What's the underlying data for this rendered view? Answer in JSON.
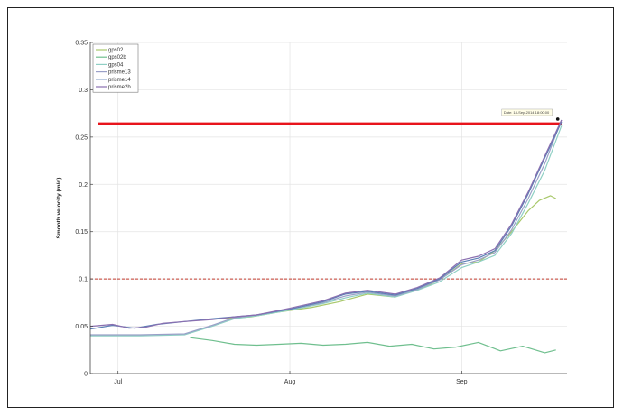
{
  "chart_data": {
    "type": "line",
    "title": "",
    "xlabel": "",
    "ylabel": "Smooth velocity (m/d)",
    "ylim": [
      0,
      0.35
    ],
    "yticks": [
      0,
      0.05,
      0.1,
      0.15,
      0.2,
      0.25,
      0.3,
      0.35
    ],
    "ytick_labels": [
      "0",
      "0.05",
      "0.1",
      "0.15",
      "0.2",
      "0.25",
      "0.3",
      "0.35"
    ],
    "xlim": [
      "2014-06-26",
      "2014-09-20"
    ],
    "xticks": [
      "2014-07-01",
      "2014-08-01",
      "2014-09-01"
    ],
    "xtick_labels": [
      "Jul",
      "Aug",
      "Sep"
    ],
    "grid": true,
    "legend_position": "top-left",
    "threshold_lines": [
      {
        "value": 0.264,
        "color": "#e8141c",
        "style": "solid"
      },
      {
        "value": 0.1,
        "color": "#c0392b",
        "style": "dashed"
      }
    ],
    "annotation": {
      "x": "2014-09-18",
      "y": 0.268,
      "text": "Date: 18-Sep-2014 18:00:00"
    },
    "series": [
      {
        "name": "gps02",
        "color": "#a8c86a",
        "x": [
          "2014-07-20",
          "2014-07-25",
          "2014-07-30",
          "2014-08-05",
          "2014-08-10",
          "2014-08-15",
          "2014-08-20",
          "2014-08-23",
          "2014-08-26",
          "2014-08-29",
          "2014-09-01",
          "2014-09-04",
          "2014-09-07",
          "2014-09-10",
          "2014-09-13",
          "2014-09-15",
          "2014-09-17",
          "2014-09-18"
        ],
        "y": [
          0.058,
          0.06,
          0.065,
          0.07,
          0.076,
          0.084,
          0.081,
          0.087,
          0.093,
          0.103,
          0.116,
          0.118,
          0.13,
          0.15,
          0.172,
          0.183,
          0.188,
          0.185
        ]
      },
      {
        "name": "gps02b",
        "color": "#6fbf8e",
        "x": [
          "2014-07-14",
          "2014-07-18",
          "2014-07-22",
          "2014-07-26",
          "2014-07-30",
          "2014-08-03",
          "2014-08-07",
          "2014-08-11",
          "2014-08-15",
          "2014-08-19",
          "2014-08-23",
          "2014-08-27",
          "2014-08-31",
          "2014-09-04",
          "2014-09-08",
          "2014-09-12",
          "2014-09-16",
          "2014-09-18"
        ],
        "y": [
          0.038,
          0.035,
          0.031,
          0.03,
          0.031,
          0.032,
          0.03,
          0.031,
          0.033,
          0.029,
          0.031,
          0.026,
          0.028,
          0.033,
          0.024,
          0.029,
          0.022,
          0.025
        ]
      },
      {
        "name": "gps04",
        "color": "#8fcfc4",
        "x": [
          "2014-06-26",
          "2014-07-05",
          "2014-07-13",
          "2014-07-18",
          "2014-07-22",
          "2014-07-26",
          "2014-08-01",
          "2014-08-07",
          "2014-08-11",
          "2014-08-15",
          "2014-08-20",
          "2014-08-24",
          "2014-08-28",
          "2014-09-01",
          "2014-09-04",
          "2014-09-07",
          "2014-09-10",
          "2014-09-13",
          "2014-09-16",
          "2014-09-19"
        ],
        "y": [
          0.04,
          0.04,
          0.041,
          0.05,
          0.058,
          0.061,
          0.067,
          0.074,
          0.08,
          0.085,
          0.081,
          0.088,
          0.097,
          0.112,
          0.118,
          0.125,
          0.148,
          0.18,
          0.215,
          0.262
        ]
      },
      {
        "name": "prisme13",
        "color": "#9aa0c8",
        "x": [
          "2014-06-26",
          "2014-07-05",
          "2014-07-13",
          "2014-07-18",
          "2014-07-22",
          "2014-07-26",
          "2014-08-01",
          "2014-08-07",
          "2014-08-11",
          "2014-08-15",
          "2014-08-20",
          "2014-08-24",
          "2014-08-28",
          "2014-09-01",
          "2014-09-04",
          "2014-09-07",
          "2014-09-10",
          "2014-09-13",
          "2014-09-16",
          "2014-09-19"
        ],
        "y": [
          0.041,
          0.041,
          0.042,
          0.051,
          0.059,
          0.062,
          0.068,
          0.075,
          0.082,
          0.086,
          0.082,
          0.089,
          0.099,
          0.115,
          0.12,
          0.128,
          0.152,
          0.185,
          0.222,
          0.268
        ]
      },
      {
        "name": "prisme14",
        "color": "#5b7fb5",
        "x": [
          "2014-06-26",
          "2014-06-30",
          "2014-07-04",
          "2014-07-08",
          "2014-07-13",
          "2014-07-18",
          "2014-07-22",
          "2014-07-26",
          "2014-08-01",
          "2014-08-07",
          "2014-08-11",
          "2014-08-15",
          "2014-08-20",
          "2014-08-24",
          "2014-08-28",
          "2014-09-01",
          "2014-09-04",
          "2014-09-07",
          "2014-09-10",
          "2014-09-13",
          "2014-09-16",
          "2014-09-19"
        ],
        "y": [
          0.047,
          0.051,
          0.048,
          0.052,
          0.055,
          0.058,
          0.06,
          0.062,
          0.068,
          0.076,
          0.084,
          0.087,
          0.083,
          0.09,
          0.1,
          0.118,
          0.122,
          0.13,
          0.156,
          0.19,
          0.228,
          0.266
        ]
      },
      {
        "name": "prisme2b",
        "color": "#8a6fb0",
        "x": [
          "2014-06-26",
          "2014-06-30",
          "2014-07-03",
          "2014-07-06",
          "2014-07-09",
          "2014-07-13",
          "2014-07-18",
          "2014-07-22",
          "2014-07-26",
          "2014-08-01",
          "2014-08-07",
          "2014-08-11",
          "2014-08-15",
          "2014-08-20",
          "2014-08-24",
          "2014-08-28",
          "2014-09-01",
          "2014-09-04",
          "2014-09-07",
          "2014-09-10",
          "2014-09-13",
          "2014-09-16",
          "2014-09-19"
        ],
        "y": [
          0.05,
          0.052,
          0.048,
          0.049,
          0.053,
          0.055,
          0.057,
          0.06,
          0.062,
          0.069,
          0.077,
          0.085,
          0.088,
          0.084,
          0.091,
          0.101,
          0.12,
          0.124,
          0.132,
          0.158,
          0.192,
          0.23,
          0.268
        ]
      }
    ]
  }
}
